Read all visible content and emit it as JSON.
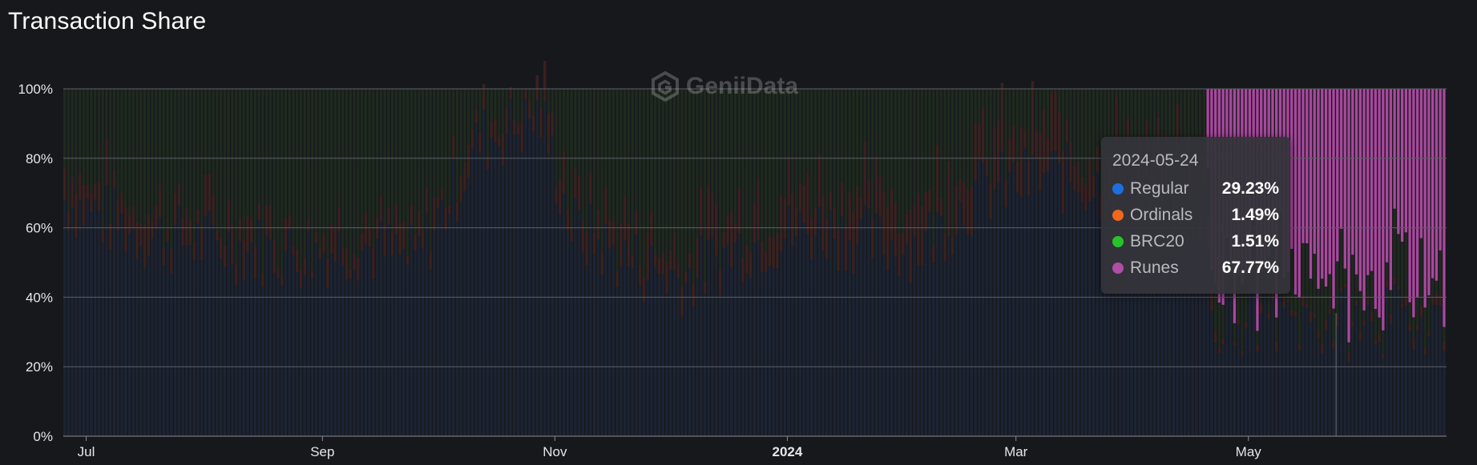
{
  "title": "Transaction Share",
  "watermark": "GeniiData",
  "chart_data": {
    "type": "bar",
    "stacked": true,
    "normalized": true,
    "ylim": [
      0,
      100
    ],
    "y_ticks": [
      "0%",
      "20%",
      "40%",
      "60%",
      "80%",
      "100%"
    ],
    "x_range": [
      "2023-06-25",
      "2024-06-22"
    ],
    "x_ticks": [
      {
        "date": "2023-07-01",
        "label": "Jul"
      },
      {
        "date": "2023-09-01",
        "label": "Sep"
      },
      {
        "date": "2023-11-01",
        "label": "Nov"
      },
      {
        "date": "2024-01-01",
        "label": "2024"
      },
      {
        "date": "2024-03-01",
        "label": "Mar"
      },
      {
        "date": "2024-05-01",
        "label": "May"
      }
    ],
    "grid": true,
    "legend": "tooltip",
    "series_colors": {
      "Regular": "#1d6fe0",
      "Ordinals": "#f0671d",
      "BRC20": "#25c42a",
      "Runes": "#b04ea4"
    },
    "regular_share_anchors": [
      {
        "date": "2023-06-25",
        "value": 68
      },
      {
        "date": "2023-07-15",
        "value": 58
      },
      {
        "date": "2023-08-05",
        "value": 55
      },
      {
        "date": "2023-08-25",
        "value": 52
      },
      {
        "date": "2023-09-10",
        "value": 55
      },
      {
        "date": "2023-09-25",
        "value": 50
      },
      {
        "date": "2023-10-05",
        "value": 70
      },
      {
        "date": "2023-10-12",
        "value": 85
      },
      {
        "date": "2023-10-28",
        "value": 92
      },
      {
        "date": "2023-11-05",
        "value": 60
      },
      {
        "date": "2023-11-20",
        "value": 50
      },
      {
        "date": "2023-12-05",
        "value": 45
      },
      {
        "date": "2023-12-20",
        "value": 55
      },
      {
        "date": "2024-01-10",
        "value": 60
      },
      {
        "date": "2024-01-25",
        "value": 55
      },
      {
        "date": "2024-02-05",
        "value": 55
      },
      {
        "date": "2024-02-20",
        "value": 70
      },
      {
        "date": "2024-03-10",
        "value": 75
      },
      {
        "date": "2024-03-30",
        "value": 70
      },
      {
        "date": "2024-04-19",
        "value": 65
      },
      {
        "date": "2024-04-22",
        "value": 35
      },
      {
        "date": "2024-05-10",
        "value": 33
      },
      {
        "date": "2024-06-01",
        "value": 32
      },
      {
        "date": "2024-06-22",
        "value": 35
      }
    ],
    "ordinals_share_anchors": [
      {
        "date": "2023-06-25",
        "value": 8
      },
      {
        "date": "2023-09-25",
        "value": 5
      },
      {
        "date": "2023-10-12",
        "value": 6
      },
      {
        "date": "2023-12-01",
        "value": 8
      },
      {
        "date": "2024-01-20",
        "value": 12
      },
      {
        "date": "2024-03-10",
        "value": 12
      },
      {
        "date": "2024-04-19",
        "value": 10
      },
      {
        "date": "2024-04-22",
        "value": 2
      },
      {
        "date": "2024-06-22",
        "value": 2
      }
    ],
    "runes_start": "2024-04-20",
    "tooltip": {
      "date": "2024-05-24",
      "rows": [
        {
          "name": "Regular",
          "value": "29.23%",
          "color": "#1d6fe0"
        },
        {
          "name": "Ordinals",
          "value": "1.49%",
          "color": "#f0671d"
        },
        {
          "name": "BRC20",
          "value": "1.51%",
          "color": "#25c42a"
        },
        {
          "name": "Runes",
          "value": "67.77%",
          "color": "#b04ea4"
        }
      ]
    }
  }
}
